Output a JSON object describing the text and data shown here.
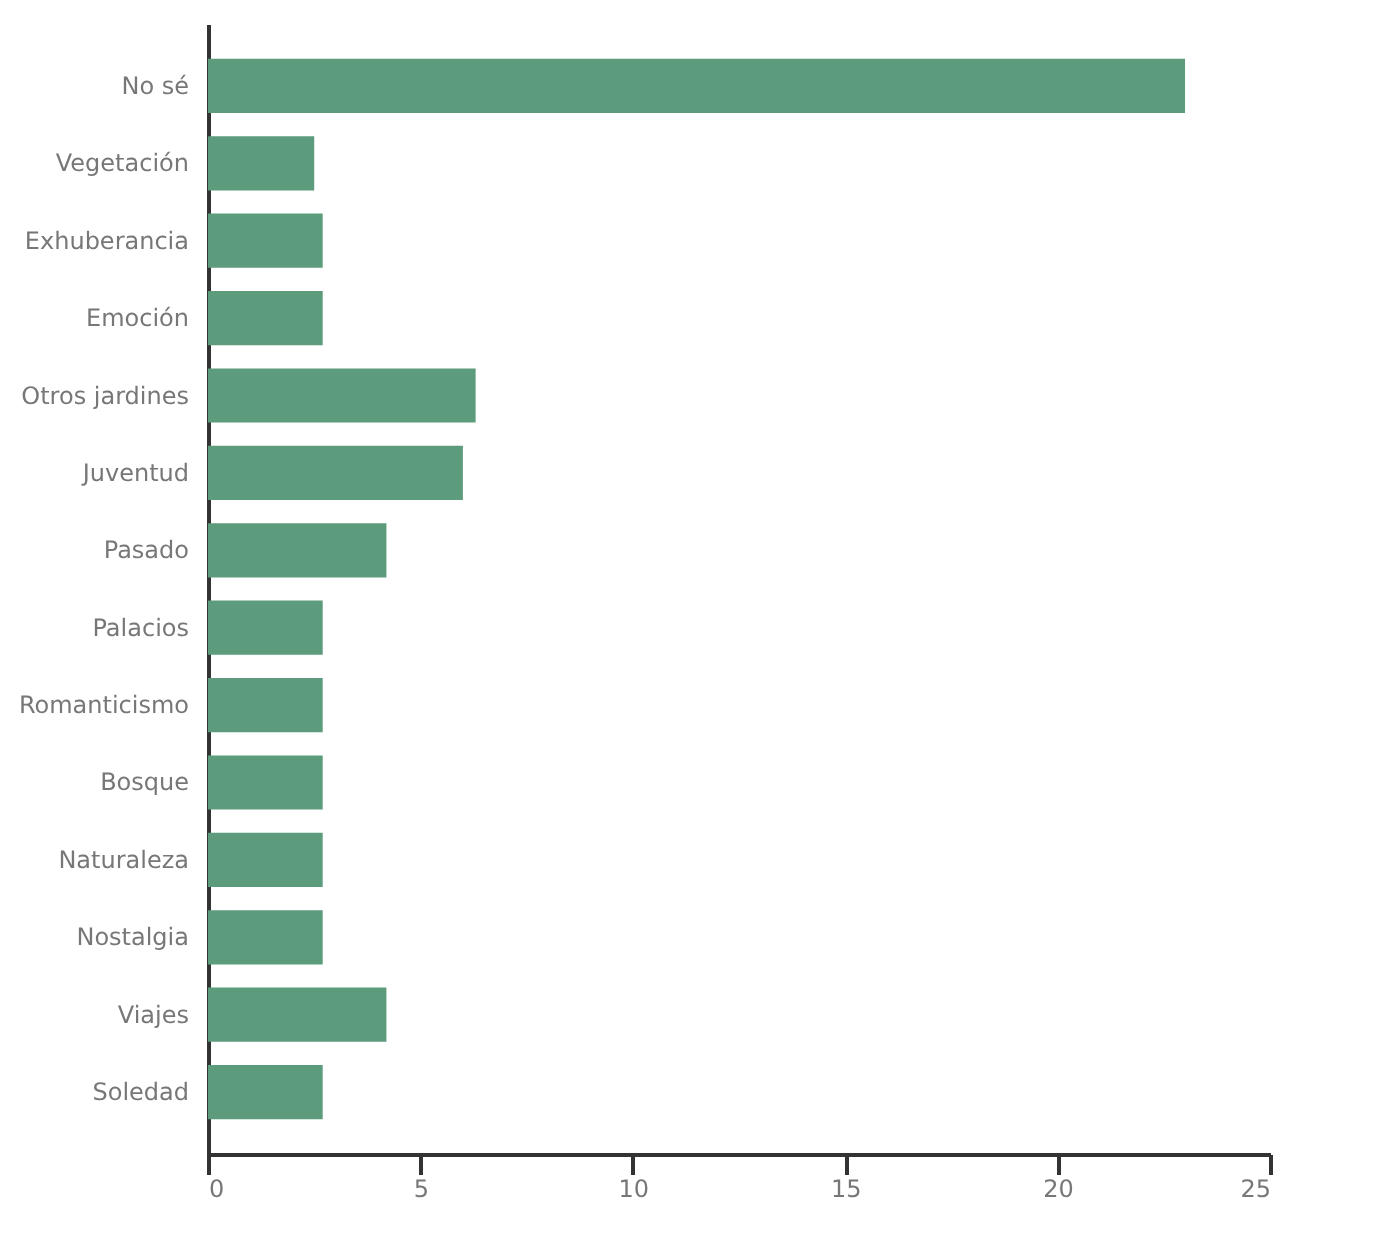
{
  "chart_data": {
    "type": "bar",
    "orientation": "horizontal",
    "categories": [
      "No sé",
      "Vegetación",
      "Exhuberancia",
      "Emoción",
      "Otros jardines",
      "Juventud",
      "Pasado",
      "Palacios",
      "Romanticismo",
      "Bosque",
      "Naturaleza",
      "Nostalgia",
      "Viajes",
      "Soledad"
    ],
    "values": [
      23,
      2.5,
      2.7,
      2.7,
      6.3,
      6,
      4.2,
      2.7,
      2.7,
      2.7,
      2.7,
      2.7,
      4.2,
      2.7
    ],
    "color": "#5c9b7c",
    "xlim": [
      0,
      25
    ],
    "xticks": [
      0,
      5,
      10,
      15,
      20,
      25
    ]
  }
}
